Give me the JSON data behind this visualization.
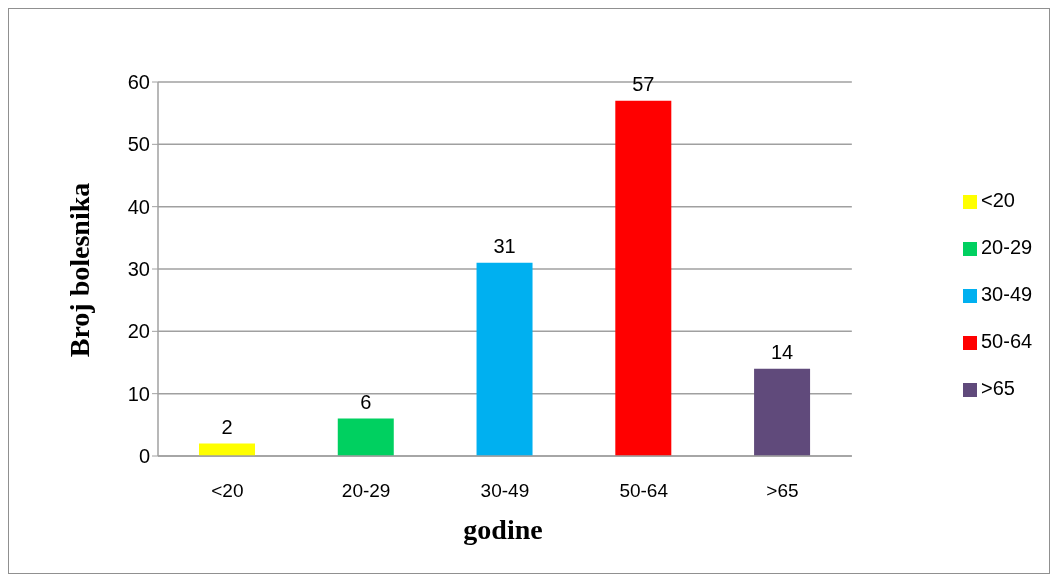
{
  "chart_data": {
    "type": "bar",
    "xlabel": "godine",
    "ylabel": "Broj bolesnika",
    "categories": [
      "<20",
      "20-29",
      "30-49",
      "50-64",
      ">65"
    ],
    "series": [
      {
        "name": "<20",
        "color": "#ffff00",
        "values": [
          2,
          null,
          null,
          null,
          null
        ]
      },
      {
        "name": "20-29",
        "color": "#00d060",
        "values": [
          null,
          6,
          null,
          null,
          null
        ]
      },
      {
        "name": "30-49",
        "color": "#00b0f0",
        "values": [
          null,
          null,
          31,
          null,
          null
        ]
      },
      {
        "name": "50-64",
        "color": "#ff0000",
        "values": [
          null,
          null,
          null,
          57,
          null
        ]
      },
      {
        "name": ">65",
        "color": "#604a7b",
        "values": [
          null,
          null,
          null,
          null,
          14
        ]
      }
    ],
    "stacked": true,
    "ylim": [
      0,
      60
    ],
    "yticks": [
      0,
      10,
      20,
      30,
      40,
      50,
      60
    ],
    "grid": "y",
    "legend": "right",
    "data_labels": true
  }
}
